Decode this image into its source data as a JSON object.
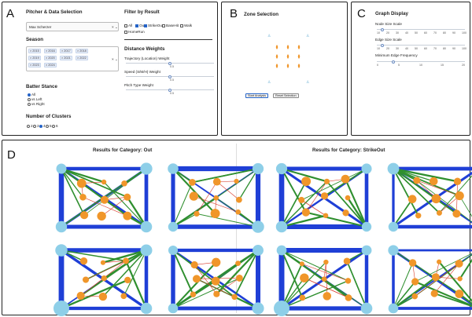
{
  "panel_labels": {
    "a": "A",
    "b": "B",
    "c": "C",
    "d": "D"
  },
  "pitcher": {
    "heading": "Pitcher & Data Selection",
    "selected_pitcher": "Max Scherzer",
    "season_heading": "Season",
    "seasons": [
      "2015",
      "2016",
      "2017",
      "2018",
      "2019",
      "2020",
      "2021",
      "2022",
      "2023",
      "2024"
    ],
    "batter_heading": "Batter Stance",
    "stances": [
      {
        "label": "All",
        "selected": true
      },
      {
        "label": "vs Left",
        "selected": false
      },
      {
        "label": "vs Right",
        "selected": false
      }
    ],
    "clusters_heading": "Number of Clusters",
    "clusters": [
      {
        "label": "2",
        "selected": false
      },
      {
        "label": "3",
        "selected": false
      },
      {
        "label": "4",
        "selected": true
      },
      {
        "label": "5",
        "selected": false
      },
      {
        "label": "6",
        "selected": false
      }
    ]
  },
  "filter": {
    "heading": "Filter by Result",
    "options": [
      {
        "label": "All",
        "checked": false
      },
      {
        "label": "Out",
        "checked": true
      },
      {
        "label": "StrikeOut",
        "checked": true
      },
      {
        "label": "BaseHit",
        "checked": false
      },
      {
        "label": "Walk",
        "checked": false
      },
      {
        "label": "HomeRun",
        "checked": false
      }
    ],
    "weights_heading": "Distance Weights",
    "weights": [
      {
        "label": "Trajectory (Location) Weight",
        "value": "0.5",
        "fraction": 0.5
      },
      {
        "label": "Speed (S/M/H) Weight",
        "value": "0.5",
        "fraction": 0.5
      },
      {
        "label": "Pitch Type Weight",
        "value": "0.5",
        "fraction": 0.5
      }
    ]
  },
  "zone": {
    "heading": "Zone Selection",
    "start_label": "Start Analysis",
    "reset_label": "Reset Selection"
  },
  "graph": {
    "heading": "Graph Display",
    "node_label": "Node Size Scale",
    "node_ticks": [
      "10",
      "20",
      "30",
      "40",
      "50",
      "60",
      "70",
      "80",
      "90",
      "100"
    ],
    "node_fraction": 0.05,
    "edge_label": "Edge Size Scale",
    "edge_ticks": [
      "10",
      "20",
      "30",
      "40",
      "50",
      "60",
      "70",
      "80",
      "90",
      "100"
    ],
    "edge_fraction": 0.05,
    "freq_label": "Minimum Edge Frequency",
    "freq_ticks": [
      "0",
      "5",
      "10",
      "15",
      "20"
    ],
    "freq_fraction": 0.18
  },
  "results": [
    {
      "title": "Results for Category: Out"
    },
    {
      "title": "Results for Category: StrikeOut"
    }
  ],
  "colors": {
    "edge_blue": "#1f3fd6",
    "edge_green": "#2f8f2f",
    "edge_red": "#d93a2a",
    "node_orange": "#f0962a",
    "corner_blue": "#8ecfe8",
    "zone_orange": "#f0962a",
    "zone_blue": "#7ab8d8"
  }
}
